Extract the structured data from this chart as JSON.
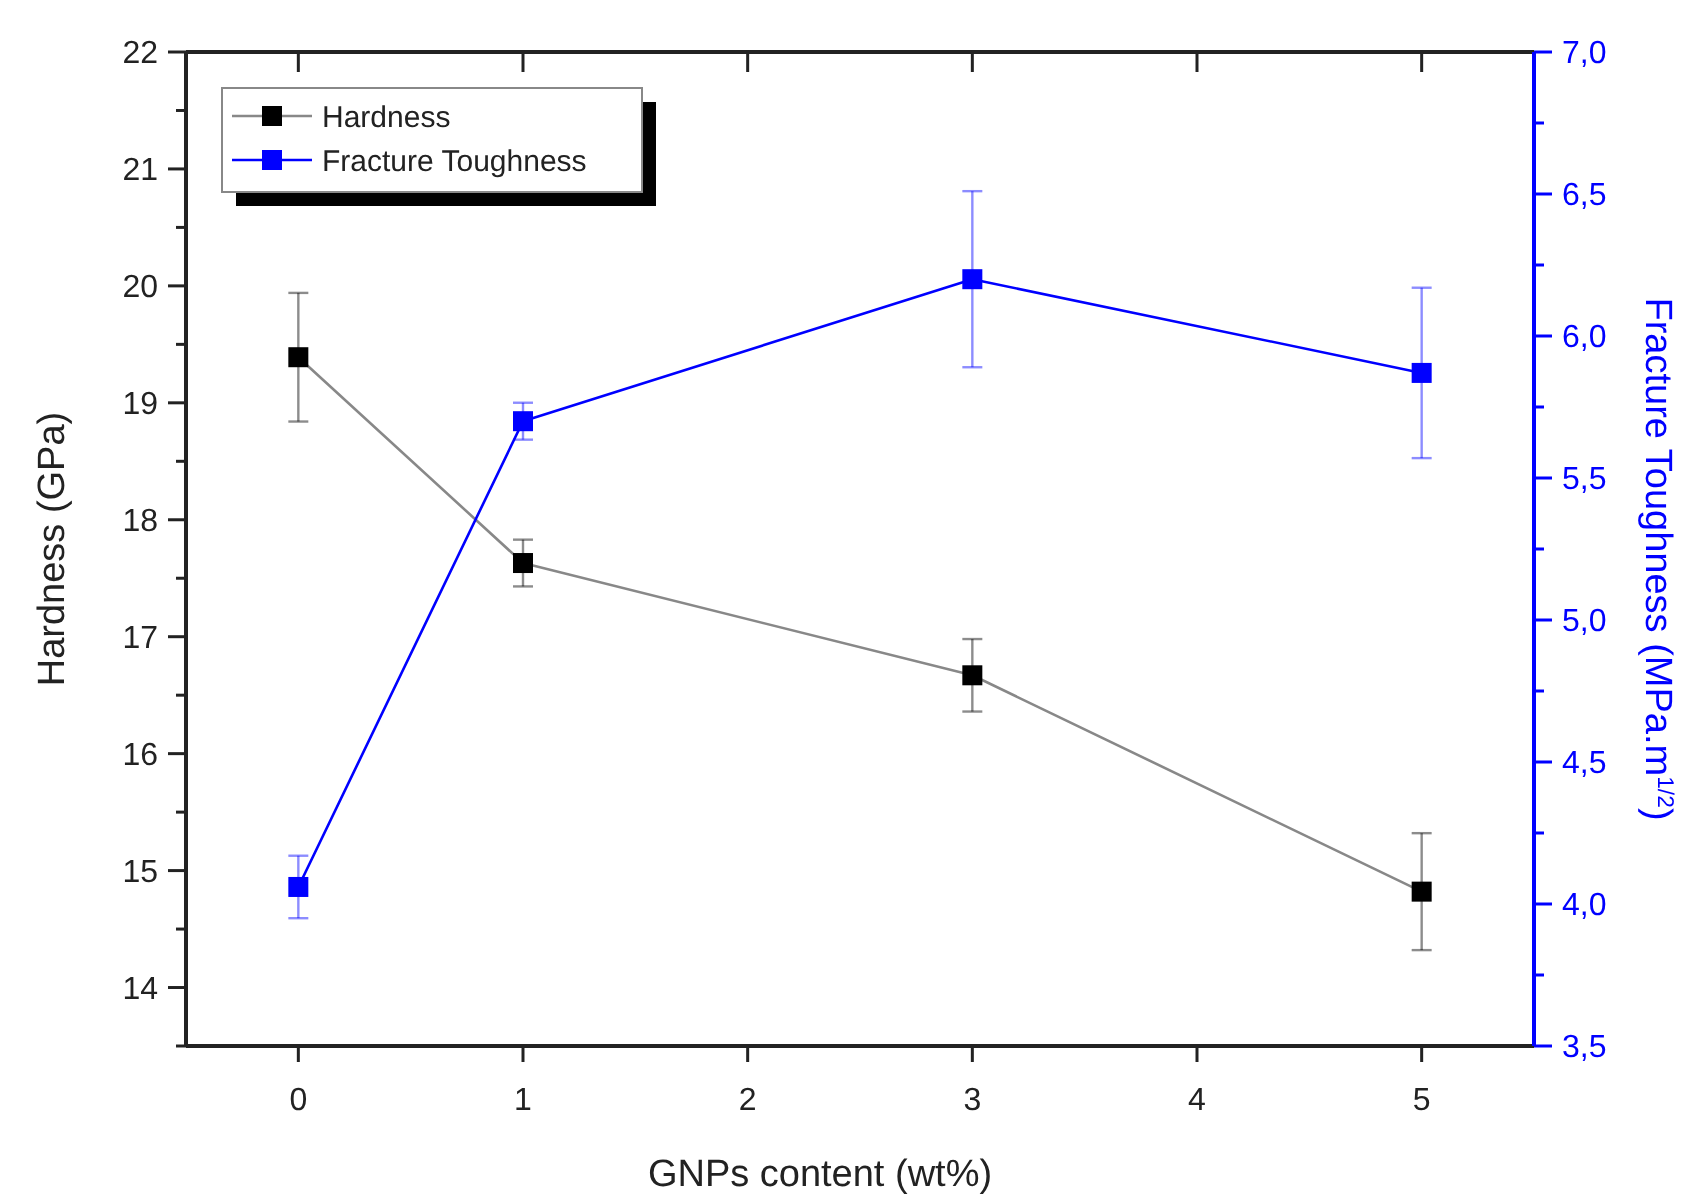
{
  "chart_data": {
    "type": "line",
    "xlabel": "GNPs content (wt%)",
    "ylabel": "Hardness (GPa)",
    "y2label": "Fracture Toughness (MPa.m$^{1/2}$)",
    "x": [
      0,
      1,
      3,
      5
    ],
    "xlim": [
      -0.5,
      5.5
    ],
    "xticks": [
      0,
      1,
      2,
      3,
      4,
      5
    ],
    "ylim": [
      13.5,
      22
    ],
    "yticks": [
      {
        "value": 13.5,
        "label": null
      },
      14,
      {
        "value": 14.5,
        "label": null
      },
      15,
      {
        "value": 15.5,
        "label": null
      },
      16,
      {
        "value": 16.5,
        "label": null
      },
      17,
      {
        "value": 17.5,
        "label": null
      },
      18,
      {
        "value": 18.5,
        "label": null
      },
      19,
      {
        "value": 19.5,
        "label": null
      },
      20,
      {
        "value": 20.5,
        "label": null
      },
      21,
      {
        "value": 21.5,
        "label": null
      },
      22
    ],
    "y2lim": [
      3.5,
      7
    ],
    "y2ticks": [
      {
        "value": 3.5,
        "label": "3,5"
      },
      {
        "value": 3.75,
        "label": null
      },
      {
        "value": 4,
        "label": "4,0"
      },
      {
        "value": 4.25,
        "label": null
      },
      {
        "value": 4.5,
        "label": "4,5"
      },
      {
        "value": 4.75,
        "label": null
      },
      {
        "value": 5,
        "label": "5,0"
      },
      {
        "value": 5.25,
        "label": null
      },
      {
        "value": 5.5,
        "label": "5,5"
      },
      {
        "value": 5.75,
        "label": null
      },
      {
        "value": 6,
        "label": "6,0"
      },
      {
        "value": 6.25,
        "label": null
      },
      {
        "value": 6.5,
        "label": "6,5"
      },
      {
        "value": 6.75,
        "label": null
      },
      {
        "value": 7,
        "label": "7,0"
      }
    ],
    "marker": "square",
    "line_style": "solid",
    "grid": false,
    "legend": "top left",
    "series": [
      {
        "name": "Hardness",
        "color": "#000000",
        "values": [
          19.39,
          17.63,
          16.67,
          14.82
        ],
        "errors": [
          0.55,
          0.2,
          0.31,
          0.5
        ]
      },
      {
        "name": "Fracture Toughness",
        "color": "#0000ff",
        "axis": "y2",
        "values": [
          4.06,
          5.7,
          6.2,
          5.87
        ],
        "errors": [
          0.11,
          0.065,
          0.31,
          0.3
        ]
      }
    ]
  }
}
